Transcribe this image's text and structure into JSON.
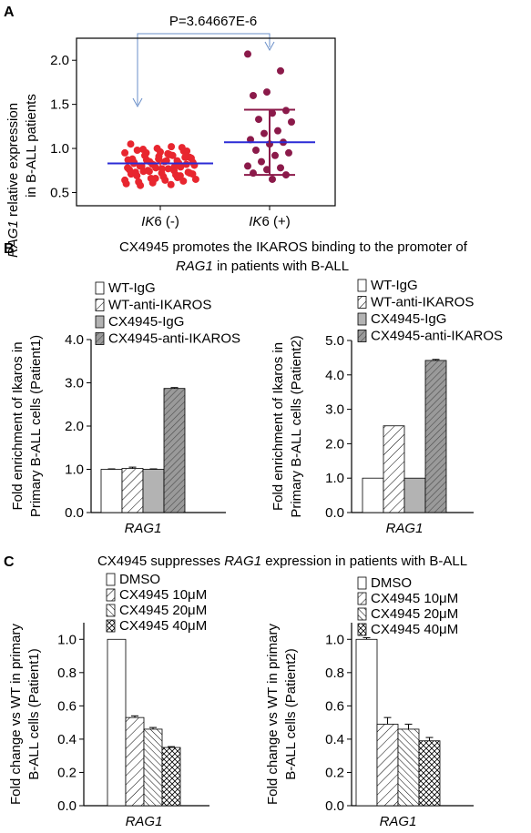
{
  "colors": {
    "neg_points": "#e8262f",
    "pos_points": "#8b1a4a",
    "mean_line": "#2b2bd6",
    "arrow": "#6a8fc9",
    "bar_gray": "#b3b3b3",
    "bar_dark": "#8c8c8c"
  },
  "chart_data": [
    {
      "panel": "A",
      "type": "scatter",
      "annotation": "P=3.64667E-6",
      "ylabel_italic": "RAG1",
      "ylabel_rest": " relative expression",
      "ylabel_line2": "in B-ALL patients",
      "ylim": [
        0.35,
        2.25
      ],
      "yticks": [
        "0.5",
        "1.0",
        "1.5",
        "2.0"
      ],
      "categories": [
        {
          "italic": "IK",
          "rest": "6 (-)"
        },
        {
          "italic": "IK",
          "rest": "6 (+)"
        }
      ],
      "series": [
        {
          "mean": 0.83,
          "sd": [
            0.73,
            0.93
          ],
          "values": [
            0.95,
            0.93,
            0.99,
            0.97,
            1.0,
            1.05,
            1.02,
            0.92,
            0.9,
            0.91,
            0.88,
            0.86,
            0.87,
            0.89,
            0.85,
            0.84,
            0.83,
            0.82,
            0.84,
            0.86,
            0.8,
            0.79,
            0.81,
            0.78,
            0.77,
            0.8,
            0.82,
            0.78,
            0.76,
            0.75,
            0.74,
            0.73,
            0.72,
            0.71,
            0.7,
            0.74,
            0.72,
            0.68,
            0.69,
            0.67,
            0.66,
            0.65,
            0.64,
            0.62,
            0.63,
            0.61,
            0.6,
            0.59,
            0.58,
            0.9,
            0.88,
            0.87,
            0.92,
            0.95,
            0.97,
            0.96,
            0.83,
            0.79,
            0.75,
            0.71,
            0.77,
            0.73,
            0.69,
            0.85,
            0.81,
            0.94,
            0.98,
            1.01,
            0.66,
            0.64
          ]
        },
        {
          "mean": 1.07,
          "sd": [
            0.7,
            1.44
          ],
          "values": [
            2.07,
            1.88,
            1.64,
            1.6,
            1.43,
            1.4,
            1.33,
            1.3,
            1.2,
            1.17,
            1.1,
            1.07,
            1.05,
            0.98,
            0.95,
            0.92,
            0.85,
            0.8,
            0.78,
            0.76,
            0.72,
            0.7,
            0.65
          ]
        }
      ]
    },
    {
      "panel": "B1",
      "type": "bar",
      "ylabel": [
        "Fold enrichment of Ikaros in",
        "Primary B-ALL cells (Patient1)"
      ],
      "category": "RAG1",
      "ylim": [
        0,
        4.0
      ],
      "yticks": [
        "0.0",
        "1.0",
        "2.0",
        "3.0",
        "4.0"
      ],
      "series": [
        {
          "name": "WT-IgG",
          "value": 1.0,
          "err": 0.01
        },
        {
          "name": "WT-anti-IKAROS",
          "value": 1.02,
          "err": 0.03
        },
        {
          "name": "CX4945-IgG",
          "value": 1.0,
          "err": 0.01
        },
        {
          "name": "CX4945-anti-IKAROS",
          "value": 2.87,
          "err": 0.02
        }
      ]
    },
    {
      "panel": "B2",
      "type": "bar",
      "ylabel": [
        "Fold enrichment of Ikaros in",
        "Primary B-ALL cells (Patient2)"
      ],
      "category": "RAG1",
      "ylim": [
        0,
        5.0
      ],
      "yticks": [
        "0.0",
        "1.0",
        "2.0",
        "3.0",
        "4.0",
        "5.0"
      ],
      "series": [
        {
          "name": "WT-IgG",
          "value": 1.0,
          "err": 0.0
        },
        {
          "name": "WT-anti-IKAROS",
          "value": 2.52,
          "err": 0.0
        },
        {
          "name": "CX4945-IgG",
          "value": 1.0,
          "err": 0.0
        },
        {
          "name": "CX4945-anti-IKAROS",
          "value": 4.42,
          "err": 0.03
        }
      ]
    },
    {
      "panel": "C1",
      "type": "bar",
      "ylabel": [
        "Fold change vs WT in primary",
        "B-ALL cells (Patient1)"
      ],
      "category": "RAG1",
      "ylim": [
        0,
        1.1
      ],
      "yticks": [
        "0.0",
        "0.2",
        "0.4",
        "0.6",
        "0.8",
        "1.0"
      ],
      "series": [
        {
          "name": "DMSO",
          "value": 1.0,
          "err": 0.0
        },
        {
          "name": "CX4945 10μM",
          "value": 0.53,
          "err": 0.01
        },
        {
          "name": "CX4945  20μM",
          "value": 0.46,
          "err": 0.01
        },
        {
          "name": "CX4945  40μM",
          "value": 0.35,
          "err": 0.005
        }
      ]
    },
    {
      "panel": "C2",
      "type": "bar",
      "ylabel": [
        "Fold change vs WT in primary",
        "B-ALL cells (Patient2)"
      ],
      "category": "RAG1",
      "ylim": [
        0,
        1.1
      ],
      "yticks": [
        "0.0",
        "0.2",
        "0.4",
        "0.6",
        "0.8",
        "1.0"
      ],
      "series": [
        {
          "name": "DMSO",
          "value": 1.0,
          "err": 0.01
        },
        {
          "name": "CX4945 10μM",
          "value": 0.49,
          "err": 0.04
        },
        {
          "name": "CX4945  20μM",
          "value": 0.46,
          "err": 0.03
        },
        {
          "name": "CX4945  40μM",
          "value": 0.39,
          "err": 0.02
        }
      ]
    }
  ],
  "panel_labels": {
    "a": "A",
    "b": "B",
    "c": "C"
  },
  "titles": {
    "b_line1": "CX4945  promotes the IKAROS binding to the promoter of",
    "b_line2_italic": "RAG1",
    "b_line2_rest": " in patients with B-ALL",
    "c_pre": "CX4945  suppresses ",
    "c_italic": "RAG1",
    "c_post": " expression in patients with B-ALL"
  }
}
